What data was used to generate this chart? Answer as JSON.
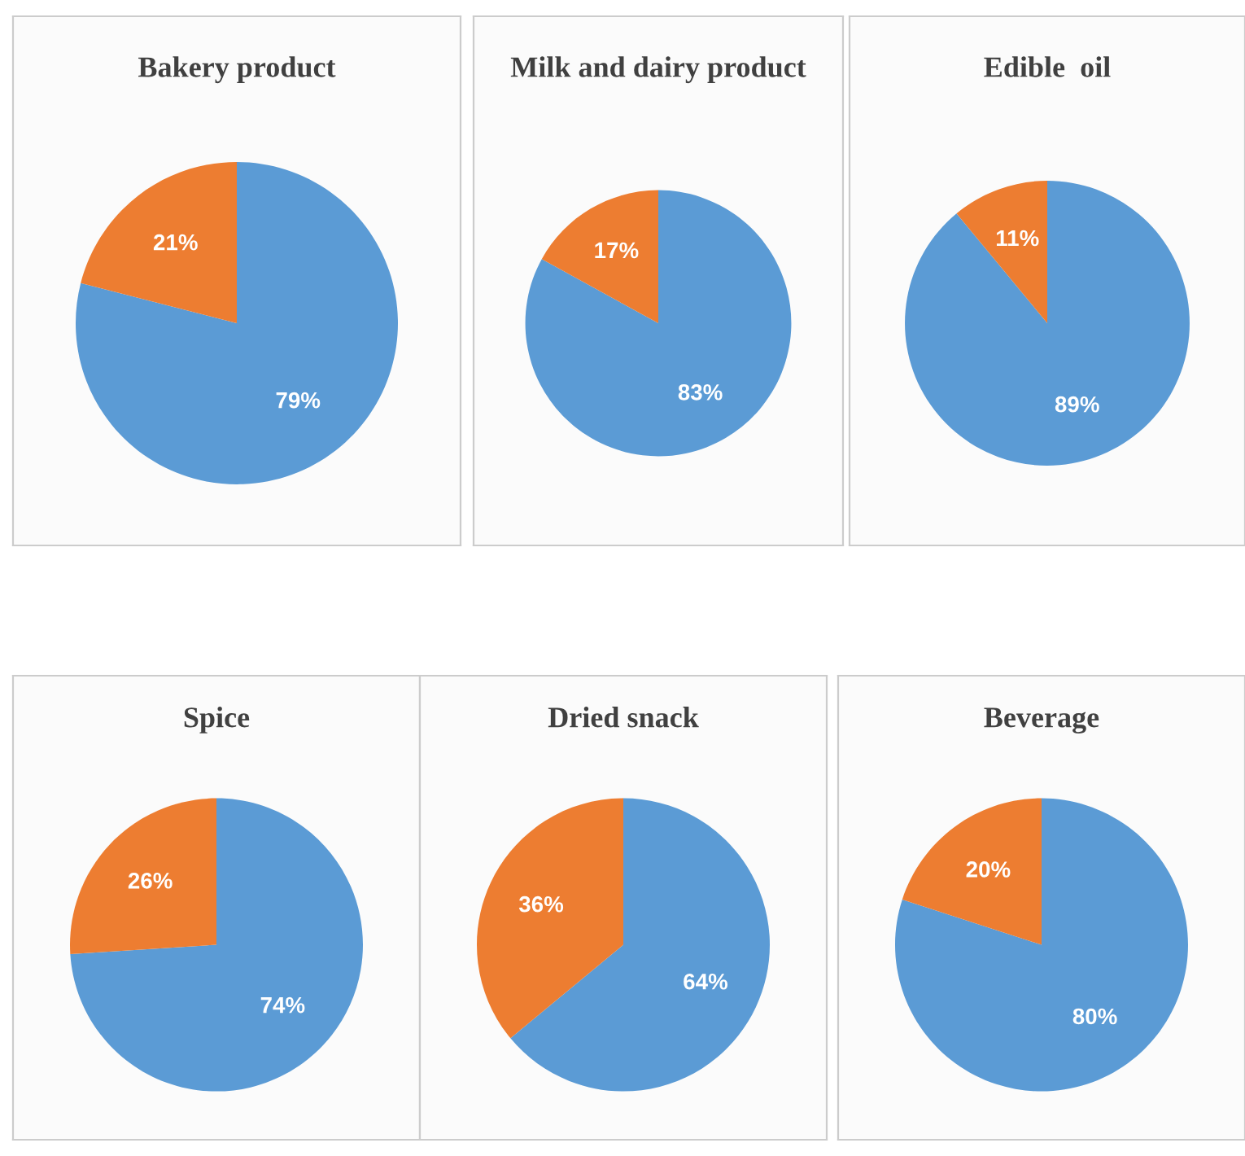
{
  "chart_data": [
    {
      "type": "pie",
      "title": "Bakery product",
      "categories": [
        null,
        null
      ],
      "values": [
        79,
        21
      ],
      "colors": [
        "#5b9bd5",
        "#ed7d31"
      ],
      "value_labels": [
        "79%",
        "21%"
      ]
    },
    {
      "type": "pie",
      "title": "Milk and dairy product",
      "categories": [
        null,
        null
      ],
      "values": [
        83,
        17
      ],
      "colors": [
        "#5b9bd5",
        "#ed7d31"
      ],
      "value_labels": [
        "83%",
        "17%"
      ]
    },
    {
      "type": "pie",
      "title": "Edible  oil",
      "categories": [
        null,
        null
      ],
      "values": [
        89,
        11
      ],
      "colors": [
        "#5b9bd5",
        "#ed7d31"
      ],
      "value_labels": [
        "89%",
        "11%"
      ]
    },
    {
      "type": "pie",
      "title": "Spice",
      "categories": [
        null,
        null
      ],
      "values": [
        74,
        26
      ],
      "colors": [
        "#5b9bd5",
        "#ed7d31"
      ],
      "value_labels": [
        "74%",
        "26%"
      ]
    },
    {
      "type": "pie",
      "title": "Dried snack",
      "categories": [
        null,
        null
      ],
      "values": [
        64,
        36
      ],
      "colors": [
        "#5b9bd5",
        "#ed7d31"
      ],
      "value_labels": [
        "64%",
        "36%"
      ]
    },
    {
      "type": "pie",
      "title": "Beverage",
      "categories": [
        null,
        null
      ],
      "values": [
        80,
        20
      ],
      "colors": [
        "#5b9bd5",
        "#ed7d31"
      ],
      "value_labels": [
        "80%",
        "20%"
      ]
    }
  ]
}
